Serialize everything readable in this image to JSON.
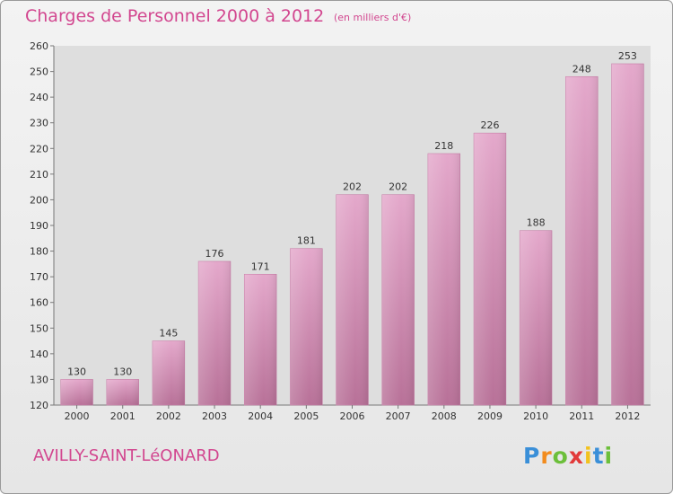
{
  "title": "Charges de Personnel 2000 à 2012",
  "subtitle": "(en milliers d'€)",
  "commune": "AVILLY-SAINT-LéONARD",
  "logo": {
    "letters": [
      "P",
      "r",
      "o",
      "x",
      "i",
      "t",
      "i"
    ],
    "colors": [
      "#3a8fd8",
      "#f28c1e",
      "#6cbf3a",
      "#e23a3a",
      "#f2c21e",
      "#3a8fd8",
      "#6cbf3a"
    ]
  },
  "chart_data": {
    "type": "bar",
    "categories": [
      "2000",
      "2001",
      "2002",
      "2003",
      "2004",
      "2005",
      "2006",
      "2007",
      "2008",
      "2009",
      "2010",
      "2011",
      "2012"
    ],
    "values": [
      130,
      130,
      145,
      176,
      171,
      181,
      202,
      202,
      218,
      226,
      188,
      248,
      253
    ],
    "ylim": [
      120,
      260
    ],
    "yticks": [
      120,
      130,
      140,
      150,
      160,
      170,
      180,
      190,
      200,
      210,
      220,
      230,
      240,
      250,
      260
    ],
    "grid": false,
    "bar_color": "#d889b6"
  }
}
